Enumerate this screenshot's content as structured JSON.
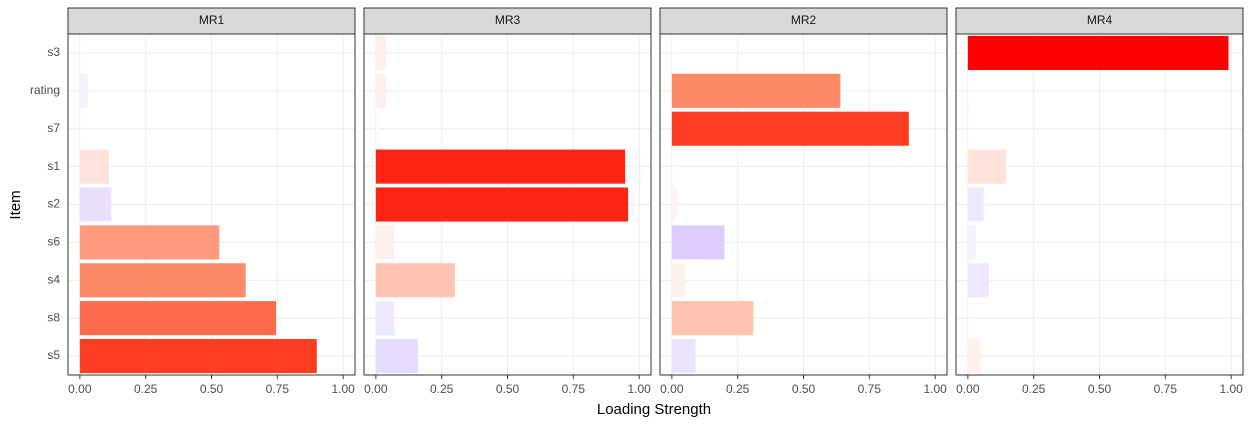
{
  "chart_data": {
    "type": "bar",
    "orientation": "horizontal",
    "x_label": "Loading Strength",
    "y_label": "Item",
    "categories": [
      "s3",
      "rating",
      "s7",
      "s1",
      "s2",
      "s6",
      "s4",
      "s8",
      "s5"
    ],
    "xlim": [
      -0.045,
      1.045
    ],
    "xticks": [
      {
        "value": 0,
        "label": "0.00"
      },
      {
        "value": 0.25,
        "label": "0.25"
      },
      {
        "value": 0.5,
        "label": "0.50"
      },
      {
        "value": 0.75,
        "label": "0.75"
      },
      {
        "value": 1,
        "label": "1.00"
      }
    ],
    "grid": true,
    "facets": [
      {
        "name": "MR1",
        "values": [
          0.005,
          0.03,
          0.005,
          0.11,
          0.12,
          0.53,
          0.63,
          0.745,
          0.9
        ],
        "colors": [
          "#fdfcff",
          "#f5f2fd",
          "#fffdfc",
          "#ffe3da",
          "#e9e0fb",
          "#ff9a7f",
          "#ff8a6a",
          "#ff6a4c",
          "#ff3d24"
        ]
      },
      {
        "name": "MR3",
        "values": [
          0.04,
          0.04,
          0.01,
          0.947,
          0.958,
          0.07,
          0.3,
          0.07,
          0.16
        ],
        "colors": [
          "#fff0eb",
          "#fff0eb",
          "#fffbfa",
          "#ff2415",
          "#ff2415",
          "#fff0eb",
          "#ffc4b2",
          "#efe8fd",
          "#e6dcfd"
        ]
      },
      {
        "name": "MR2",
        "values": [
          0.003,
          0.64,
          0.9,
          0.005,
          0.02,
          0.2,
          0.05,
          0.31,
          0.09
        ],
        "colors": [
          "#fffdfc",
          "#ff8a6a",
          "#ff3d24",
          "#fffdfc",
          "#fff4f1",
          "#dccdfd",
          "#fff0eb",
          "#ffc4b2",
          "#ece4fd"
        ]
      },
      {
        "name": "MR4",
        "values": [
          0.99,
          0.005,
          0.005,
          0.145,
          0.06,
          0.03,
          0.08,
          0.005,
          0.05
        ],
        "colors": [
          "#ff0000",
          "#fdfcff",
          "#fdfcff",
          "#ffe3da",
          "#efe8fd",
          "#f5f2fd",
          "#efe8fd",
          "#fffdfc",
          "#fff0eb"
        ]
      }
    ]
  }
}
